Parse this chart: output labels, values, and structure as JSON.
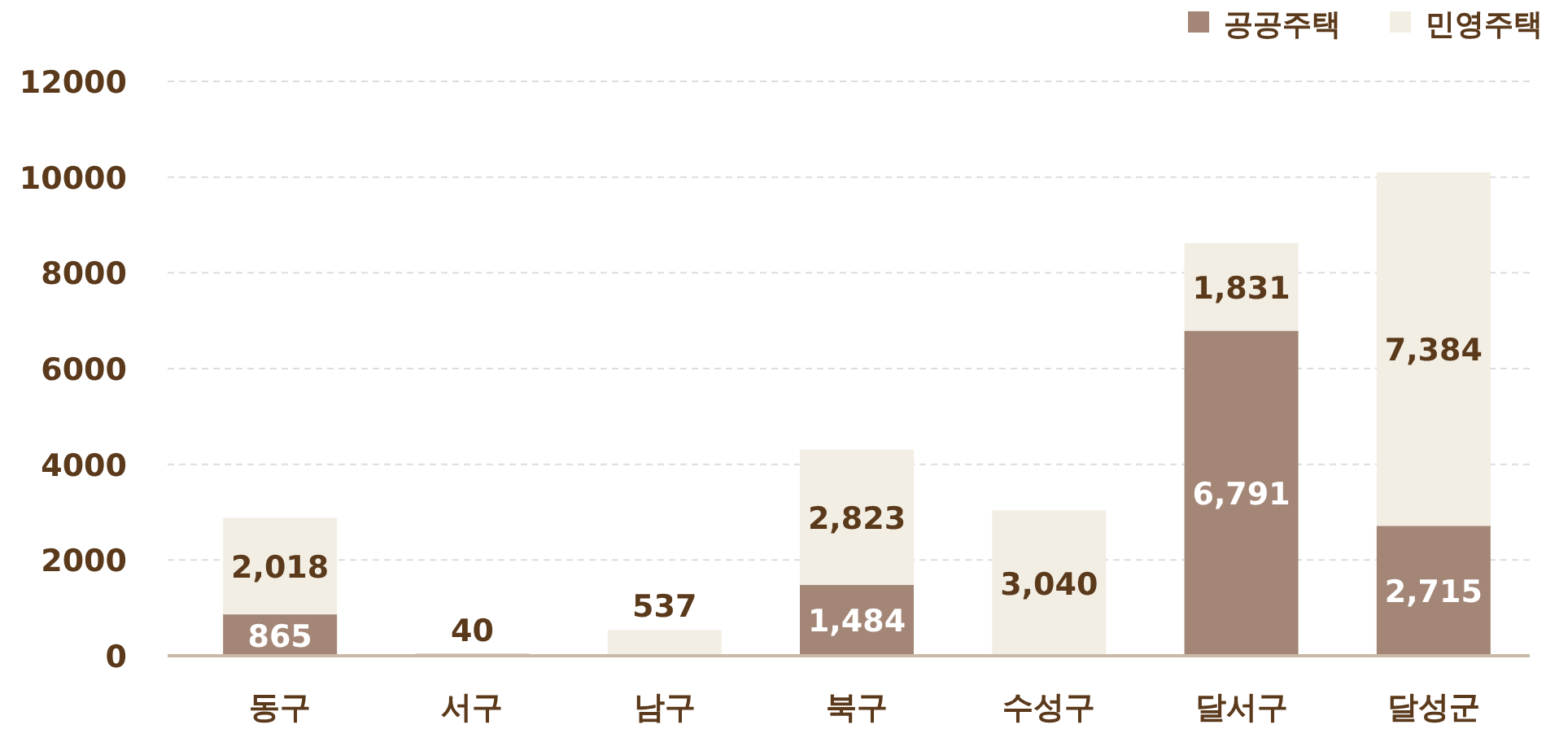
{
  "chart_data": {
    "type": "bar",
    "stacked": true,
    "categories": [
      "동구",
      "서구",
      "남구",
      "북구",
      "수성구",
      "달서구",
      "달성군"
    ],
    "series": [
      {
        "name": "공공주택",
        "color": "#a38676",
        "values": [
          865,
          40,
          null,
          1484,
          null,
          6791,
          2715
        ],
        "value_labels": [
          "865",
          "40",
          null,
          "1,484",
          null,
          "6,791",
          "2,715"
        ]
      },
      {
        "name": "민영주택",
        "color": "#f3eee4",
        "values": [
          2018,
          null,
          537,
          2823,
          3040,
          1831,
          7384
        ],
        "value_labels": [
          "2,018",
          null,
          "537",
          "2,823",
          "3,040",
          "1,831",
          "7,384"
        ]
      }
    ],
    "ylim": [
      0,
      12000
    ],
    "yticks": [
      0,
      2000,
      4000,
      6000,
      8000,
      10000,
      12000
    ],
    "grid": "y",
    "legend": "top right"
  }
}
